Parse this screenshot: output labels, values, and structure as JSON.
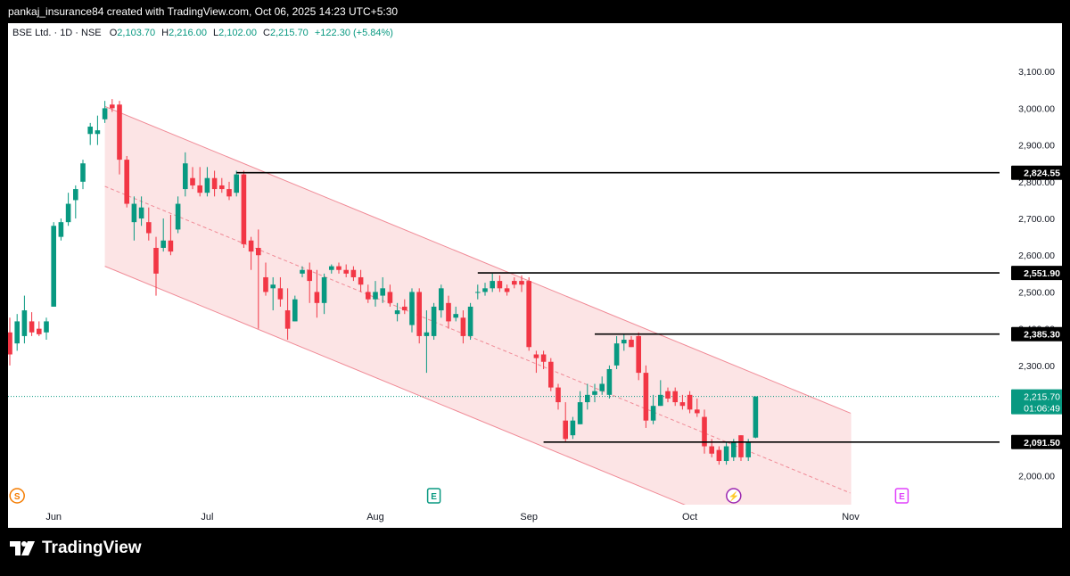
{
  "header": {
    "credit": "pankaj_insurance84 created with TradingView.com, Oct 06, 2025 14:23 UTC+5:30"
  },
  "legend": {
    "symbol": "BSE Ltd. · 1D · NSE",
    "open_label": "O",
    "open": "2,103.70",
    "high_label": "H",
    "high": "2,216.00",
    "low_label": "L",
    "low": "2,102.00",
    "close_label": "C",
    "close": "2,215.70",
    "change": "+122.30 (+5.84%)"
  },
  "footer": {
    "brand": "TradingView"
  },
  "colors": {
    "up": "#089981",
    "down": "#f23645",
    "channel_fill": "#fbdfe1",
    "channel_line": "#f08a96",
    "price_line": "#089981"
  },
  "icons": [
    "dividend-icon",
    "earnings-icon",
    "split-flash-icon",
    "future-earnings-icon"
  ],
  "chart_data": {
    "type": "candlestick",
    "ylim": [
      1998,
      3130
    ],
    "y_ticks": [
      {
        "value": 3100,
        "label": "3,100.00"
      },
      {
        "value": 3000,
        "label": "3,000.00"
      },
      {
        "value": 2900,
        "label": "2,900.00"
      },
      {
        "value": 2800,
        "label": "2,800.00"
      },
      {
        "value": 2700,
        "label": "2,700.00"
      },
      {
        "value": 2600,
        "label": "2,600.00"
      },
      {
        "value": 2500,
        "label": "2,500.00"
      },
      {
        "value": 2400,
        "label": "2,400.00"
      },
      {
        "value": 2300,
        "label": "2,300.00"
      },
      {
        "value": 2200,
        "label": "2,200.00"
      },
      {
        "value": 2100,
        "label": "2,100.00"
      },
      {
        "value": 2000,
        "label": "2,000.00"
      }
    ],
    "x_ticks": [
      {
        "index": 6,
        "label": "Jun"
      },
      {
        "index": 27,
        "label": "Jul"
      },
      {
        "index": 50,
        "label": "Aug"
      },
      {
        "index": 71,
        "label": "Sep"
      },
      {
        "index": 93,
        "label": "Oct"
      },
      {
        "index": 115,
        "label": "Nov"
      }
    ],
    "candles": [
      [
        2390,
        2430,
        2300,
        2330
      ],
      [
        2360,
        2440,
        2340,
        2420
      ],
      [
        2380,
        2490,
        2360,
        2450
      ],
      [
        2420,
        2445,
        2380,
        2390
      ],
      [
        2400,
        2420,
        2380,
        2385
      ],
      [
        2390,
        2430,
        2370,
        2420
      ],
      [
        2460,
        2690,
        2460,
        2680
      ],
      [
        2650,
        2700,
        2640,
        2690
      ],
      [
        2690,
        2770,
        2680,
        2740
      ],
      [
        2750,
        2790,
        2700,
        2780
      ],
      [
        2800,
        2860,
        2780,
        2850
      ],
      [
        2930,
        2960,
        2900,
        2950
      ],
      [
        2930,
        2980,
        2900,
        2940
      ],
      [
        2970,
        3020,
        2960,
        3000
      ],
      [
        3010,
        3025,
        2990,
        3000
      ],
      [
        3010,
        3020,
        2820,
        2860
      ],
      [
        2860,
        2870,
        2730,
        2740
      ],
      [
        2690,
        2760,
        2640,
        2740
      ],
      [
        2700,
        2760,
        2680,
        2730
      ],
      [
        2690,
        2730,
        2640,
        2660
      ],
      [
        2620,
        2650,
        2490,
        2550
      ],
      [
        2620,
        2700,
        2610,
        2640
      ],
      [
        2640,
        2710,
        2600,
        2610
      ],
      [
        2670,
        2760,
        2660,
        2740
      ],
      [
        2780,
        2880,
        2760,
        2850
      ],
      [
        2810,
        2840,
        2780,
        2790
      ],
      [
        2790,
        2840,
        2760,
        2770
      ],
      [
        2770,
        2840,
        2760,
        2810
      ],
      [
        2810,
        2830,
        2760,
        2780
      ],
      [
        2790,
        2810,
        2770,
        2780
      ],
      [
        2780,
        2800,
        2750,
        2760
      ],
      [
        2770,
        2830,
        2760,
        2820
      ],
      [
        2820,
        2830,
        2620,
        2630
      ],
      [
        2640,
        2650,
        2560,
        2610
      ],
      [
        2620,
        2670,
        2400,
        2600
      ],
      [
        2540,
        2580,
        2490,
        2500
      ],
      [
        2510,
        2540,
        2450,
        2520
      ],
      [
        2510,
        2540,
        2460,
        2480
      ],
      [
        2450,
        2510,
        2370,
        2400
      ],
      [
        2420,
        2490,
        2420,
        2480
      ],
      [
        2550,
        2570,
        2540,
        2560
      ],
      [
        2560,
        2580,
        2470,
        2530
      ],
      [
        2500,
        2560,
        2430,
        2470
      ],
      [
        2470,
        2550,
        2440,
        2540
      ],
      [
        2560,
        2575,
        2550,
        2570
      ],
      [
        2570,
        2580,
        2550,
        2560
      ],
      [
        2560,
        2575,
        2540,
        2550
      ],
      [
        2560,
        2570,
        2530,
        2540
      ],
      [
        2540,
        2560,
        2500,
        2520
      ],
      [
        2500,
        2520,
        2470,
        2480
      ],
      [
        2480,
        2530,
        2460,
        2500
      ],
      [
        2490,
        2540,
        2470,
        2510
      ],
      [
        2500,
        2520,
        2460,
        2470
      ],
      [
        2440,
        2470,
        2420,
        2450
      ],
      [
        2460,
        2480,
        2440,
        2450
      ],
      [
        2410,
        2510,
        2390,
        2500
      ],
      [
        2500,
        2510,
        2360,
        2380
      ],
      [
        2380,
        2450,
        2280,
        2390
      ],
      [
        2380,
        2470,
        2370,
        2460
      ],
      [
        2450,
        2520,
        2430,
        2510
      ],
      [
        2470,
        2490,
        2400,
        2420
      ],
      [
        2430,
        2460,
        2420,
        2440
      ],
      [
        2430,
        2450,
        2360,
        2380
      ],
      [
        2380,
        2470,
        2370,
        2460
      ],
      [
        2500,
        2520,
        2480,
        2500
      ],
      [
        2500,
        2525,
        2490,
        2510
      ],
      [
        2510,
        2550,
        2500,
        2530
      ],
      [
        2530,
        2545,
        2500,
        2510
      ],
      [
        2510,
        2520,
        2490,
        2500
      ],
      [
        2530,
        2540,
        2510,
        2520
      ],
      [
        2530,
        2545,
        2500,
        2520
      ],
      [
        2530,
        2540,
        2340,
        2350
      ],
      [
        2330,
        2340,
        2280,
        2320
      ],
      [
        2330,
        2340,
        2290,
        2310
      ],
      [
        2310,
        2320,
        2230,
        2240
      ],
      [
        2240,
        2250,
        2180,
        2200
      ],
      [
        2150,
        2200,
        2090,
        2100
      ],
      [
        2110,
        2160,
        2100,
        2150
      ],
      [
        2140,
        2230,
        2140,
        2200
      ],
      [
        2200,
        2250,
        2180,
        2220
      ],
      [
        2220,
        2250,
        2200,
        2230
      ],
      [
        2230,
        2270,
        2220,
        2250
      ],
      [
        2220,
        2300,
        2210,
        2290
      ],
      [
        2300,
        2380,
        2290,
        2360
      ],
      [
        2360,
        2385,
        2340,
        2370
      ],
      [
        2370,
        2380,
        2350,
        2350
      ],
      [
        2380,
        2390,
        2260,
        2280
      ],
      [
        2280,
        2300,
        2130,
        2150
      ],
      [
        2150,
        2220,
        2140,
        2190
      ],
      [
        2190,
        2260,
        2190,
        2220
      ],
      [
        2230,
        2240,
        2200,
        2210
      ],
      [
        2230,
        2240,
        2190,
        2200
      ],
      [
        2200,
        2220,
        2180,
        2190
      ],
      [
        2220,
        2230,
        2170,
        2180
      ],
      [
        2180,
        2210,
        2160,
        2170
      ],
      [
        2160,
        2180,
        2060,
        2080
      ],
      [
        2080,
        2100,
        2050,
        2060
      ],
      [
        2070,
        2080,
        2030,
        2040
      ],
      [
        2040,
        2090,
        2030,
        2080
      ],
      [
        2050,
        2100,
        2040,
        2090
      ],
      [
        2110,
        2110,
        2040,
        2050
      ],
      [
        2050,
        2100,
        2040,
        2090
      ],
      [
        2103.7,
        2216,
        2102,
        2215.7
      ]
    ],
    "channel": {
      "upper": [
        [
          13,
          3005
        ],
        [
          115,
          2170
        ]
      ],
      "lower": [
        [
          13,
          2570
        ],
        [
          115,
          1735
        ]
      ],
      "mid": [
        [
          13,
          2787.5
        ],
        [
          115,
          1952.5
        ]
      ]
    },
    "levels": [
      {
        "value": 2824.55,
        "label": "2,824.55",
        "from_index": 31
      },
      {
        "value": 2551.9,
        "label": "2,551.90",
        "from_index": 64
      },
      {
        "value": 2385.3,
        "label": "2,385.30",
        "from_index": 80
      },
      {
        "value": 2091.5,
        "label": "2,091.50",
        "from_index": 73
      }
    ],
    "last_price": {
      "value": 2215.7,
      "label": "2,215.70",
      "countdown": "01:06:49"
    },
    "events": [
      {
        "index": 1,
        "icon": "dividend-icon",
        "glyph": "S"
      },
      {
        "index": 58,
        "icon": "earnings-icon",
        "glyph": "E"
      },
      {
        "index": 99,
        "icon": "split-flash-icon",
        "glyph": "⚡"
      },
      {
        "index": 122,
        "icon": "future-earnings-icon",
        "glyph": "E"
      }
    ]
  }
}
